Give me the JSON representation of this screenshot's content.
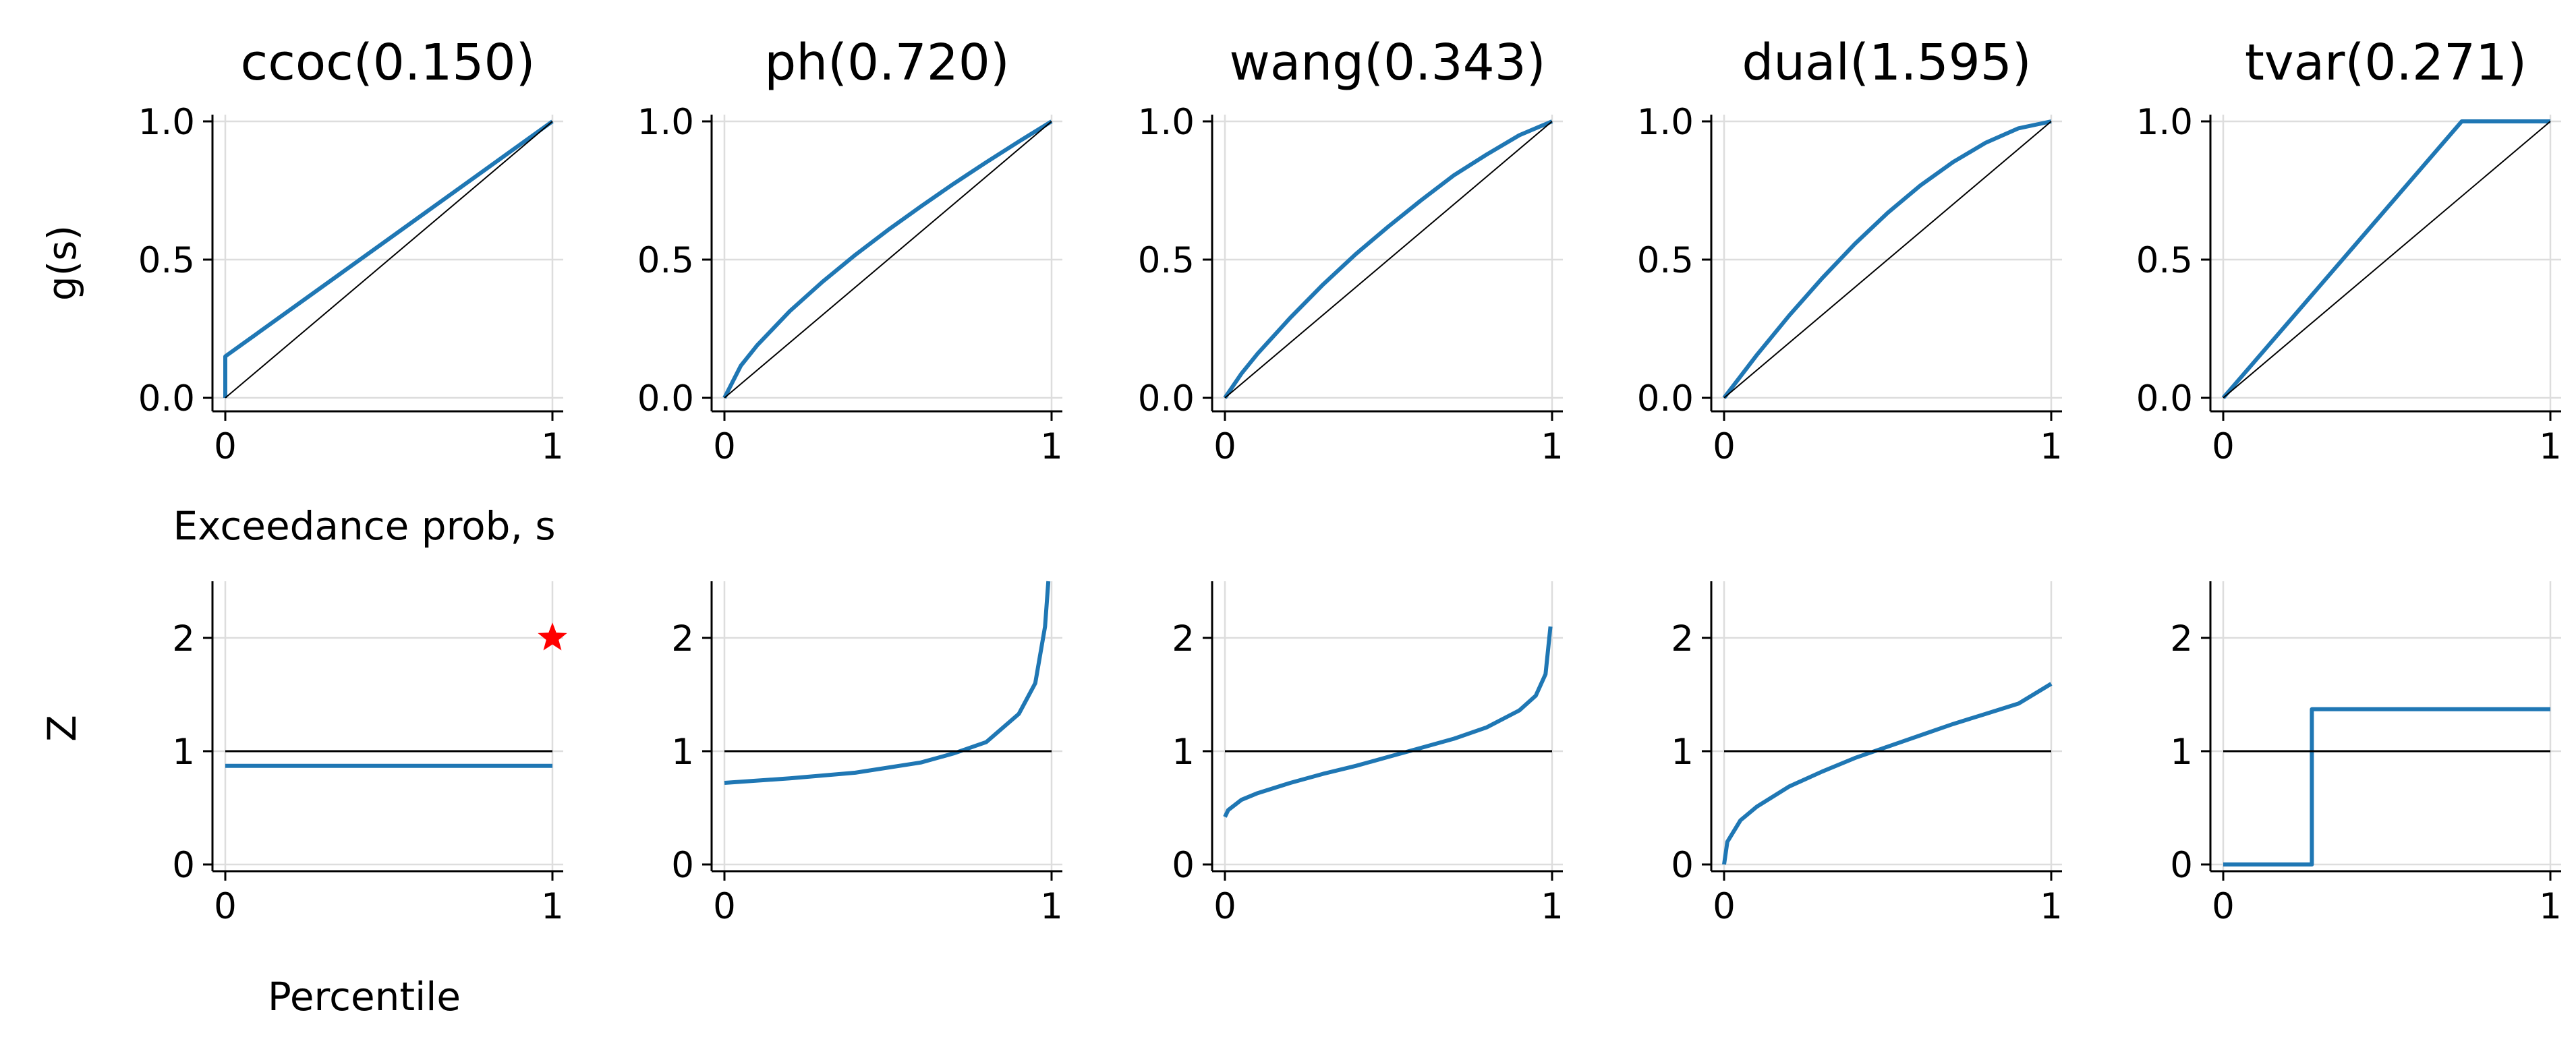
{
  "colors": {
    "curve": "#1f77b4",
    "reference": "#000000",
    "grid": "#dddddd",
    "marker": "#ff0000",
    "background": "#ffffff"
  },
  "labels": {
    "top_ylabel": "g(s)",
    "top_xlabel": "Exceedance prob, s",
    "bottom_ylabel": "Z",
    "bottom_xlabel": "Percentile"
  },
  "chart_data": [
    {
      "type": "line",
      "title": "ccoc(0.150)",
      "row": "top",
      "xlabel": "Exceedance prob, s",
      "ylabel": "g(s)",
      "xlim": [
        0,
        1
      ],
      "ylim": [
        0,
        1
      ],
      "xticks": [
        "0",
        "1"
      ],
      "yticks": [
        "0.0",
        "0.5",
        "1.0"
      ],
      "grid": true,
      "series": [
        {
          "x": [
            0,
            0,
            1
          ],
          "y": [
            0,
            0.15,
            1
          ]
        },
        {
          "role": "reference",
          "x": [
            0,
            1
          ],
          "y": [
            0,
            1
          ]
        }
      ]
    },
    {
      "type": "line",
      "title": "ph(0.720)",
      "row": "top",
      "xlim": [
        0,
        1
      ],
      "ylim": [
        0,
        1
      ],
      "xticks": [
        "0",
        "1"
      ],
      "yticks": [
        "0.0",
        "0.5",
        "1.0"
      ],
      "grid": true,
      "series": [
        {
          "x": [
            0,
            0.05,
            0.1,
            0.2,
            0.3,
            0.4,
            0.5,
            0.6,
            0.7,
            0.8,
            0.9,
            1
          ],
          "y": [
            0,
            0.116,
            0.19,
            0.314,
            0.42,
            0.517,
            0.607,
            0.692,
            0.774,
            0.852,
            0.927,
            1
          ]
        },
        {
          "role": "reference",
          "x": [
            0,
            1
          ],
          "y": [
            0,
            1
          ]
        }
      ]
    },
    {
      "type": "line",
      "title": "wang(0.343)",
      "row": "top",
      "xlim": [
        0,
        1
      ],
      "ylim": [
        0,
        1
      ],
      "xticks": [
        "0",
        "1"
      ],
      "yticks": [
        "0.0",
        "0.5",
        "1.0"
      ],
      "grid": true,
      "series": [
        {
          "x": [
            0,
            0.05,
            0.1,
            0.2,
            0.3,
            0.4,
            0.5,
            0.6,
            0.7,
            0.8,
            0.9,
            1
          ],
          "y": [
            0,
            0.087,
            0.16,
            0.29,
            0.41,
            0.52,
            0.62,
            0.715,
            0.805,
            0.88,
            0.95,
            1
          ]
        },
        {
          "role": "reference",
          "x": [
            0,
            1
          ],
          "y": [
            0,
            1
          ]
        }
      ]
    },
    {
      "type": "line",
      "title": "dual(1.595)",
      "row": "top",
      "xlim": [
        0,
        1
      ],
      "ylim": [
        0,
        1
      ],
      "xticks": [
        "0",
        "1"
      ],
      "yticks": [
        "0.0",
        "0.5",
        "1.0"
      ],
      "grid": true,
      "series": [
        {
          "x": [
            0,
            0.1,
            0.2,
            0.3,
            0.4,
            0.5,
            0.6,
            0.7,
            0.8,
            0.9,
            1
          ],
          "y": [
            0,
            0.155,
            0.299,
            0.433,
            0.557,
            0.669,
            0.768,
            0.853,
            0.923,
            0.975,
            1
          ]
        },
        {
          "role": "reference",
          "x": [
            0,
            1
          ],
          "y": [
            0,
            1
          ]
        }
      ]
    },
    {
      "type": "line",
      "title": "tvar(0.271)",
      "row": "top",
      "xlim": [
        0,
        1
      ],
      "ylim": [
        0,
        1
      ],
      "xticks": [
        "0",
        "1"
      ],
      "yticks": [
        "0.0",
        "0.5",
        "1.0"
      ],
      "grid": true,
      "series": [
        {
          "x": [
            0,
            0.729,
            1
          ],
          "y": [
            0,
            1,
            1
          ]
        },
        {
          "role": "reference",
          "x": [
            0,
            1
          ],
          "y": [
            0,
            1
          ]
        }
      ]
    },
    {
      "type": "line",
      "row": "bottom",
      "xlabel": "Percentile",
      "ylabel": "Z",
      "xlim": [
        0,
        1
      ],
      "ylim": [
        0,
        2.5
      ],
      "xticks": [
        "0",
        "1"
      ],
      "yticks": [
        "0",
        "1",
        "2"
      ],
      "grid": true,
      "series": [
        {
          "x": [
            0,
            1
          ],
          "y": [
            0.87,
            0.87
          ]
        },
        {
          "role": "reference",
          "x": [
            0,
            1
          ],
          "y": [
            1,
            1
          ]
        }
      ],
      "markers": [
        {
          "x": 1,
          "y": 2,
          "symbol": "star"
        }
      ]
    },
    {
      "type": "line",
      "row": "bottom",
      "xlim": [
        0,
        1
      ],
      "ylim": [
        0,
        2.5
      ],
      "xticks": [
        "0",
        "1"
      ],
      "yticks": [
        "0",
        "1",
        "2"
      ],
      "grid": true,
      "series": [
        {
          "x": [
            0,
            0.2,
            0.4,
            0.6,
            0.7,
            0.8,
            0.9,
            0.95,
            0.98,
            0.99
          ],
          "y": [
            0.72,
            0.76,
            0.81,
            0.9,
            0.98,
            1.08,
            1.33,
            1.6,
            2.1,
            2.5
          ]
        },
        {
          "role": "reference",
          "x": [
            0,
            1
          ],
          "y": [
            1,
            1
          ]
        }
      ]
    },
    {
      "type": "line",
      "row": "bottom",
      "xlim": [
        0,
        1
      ],
      "ylim": [
        0,
        2.5
      ],
      "xticks": [
        "0",
        "1"
      ],
      "yticks": [
        "0",
        "1",
        "2"
      ],
      "grid": true,
      "series": [
        {
          "x": [
            0,
            0.01,
            0.05,
            0.1,
            0.2,
            0.3,
            0.4,
            0.5,
            0.6,
            0.7,
            0.8,
            0.9,
            0.95,
            0.98,
            0.995
          ],
          "y": [
            0.42,
            0.48,
            0.57,
            0.63,
            0.72,
            0.8,
            0.87,
            0.95,
            1.03,
            1.11,
            1.21,
            1.36,
            1.49,
            1.68,
            2.1
          ]
        },
        {
          "role": "reference",
          "x": [
            0,
            1
          ],
          "y": [
            1,
            1
          ]
        }
      ]
    },
    {
      "type": "line",
      "row": "bottom",
      "xlim": [
        0,
        1
      ],
      "ylim": [
        0,
        2.5
      ],
      "xticks": [
        "0",
        "1"
      ],
      "yticks": [
        "0",
        "1",
        "2"
      ],
      "grid": true,
      "series": [
        {
          "x": [
            0,
            0.01,
            0.05,
            0.1,
            0.2,
            0.3,
            0.4,
            0.5,
            0.6,
            0.7,
            0.8,
            0.9,
            1
          ],
          "y": [
            0,
            0.2,
            0.39,
            0.51,
            0.69,
            0.82,
            0.94,
            1.04,
            1.14,
            1.24,
            1.33,
            1.42,
            1.595
          ]
        },
        {
          "role": "reference",
          "x": [
            0,
            1
          ],
          "y": [
            1,
            1
          ]
        }
      ]
    },
    {
      "type": "line",
      "row": "bottom",
      "xlim": [
        0,
        1
      ],
      "ylim": [
        0,
        2.5
      ],
      "xticks": [
        "0",
        "1"
      ],
      "yticks": [
        "0",
        "1",
        "2"
      ],
      "grid": true,
      "series": [
        {
          "x": [
            0,
            0.271,
            0.271,
            1
          ],
          "y": [
            0,
            0,
            1.37,
            1.37
          ]
        },
        {
          "role": "reference",
          "x": [
            0,
            1
          ],
          "y": [
            1,
            1
          ]
        }
      ]
    }
  ]
}
